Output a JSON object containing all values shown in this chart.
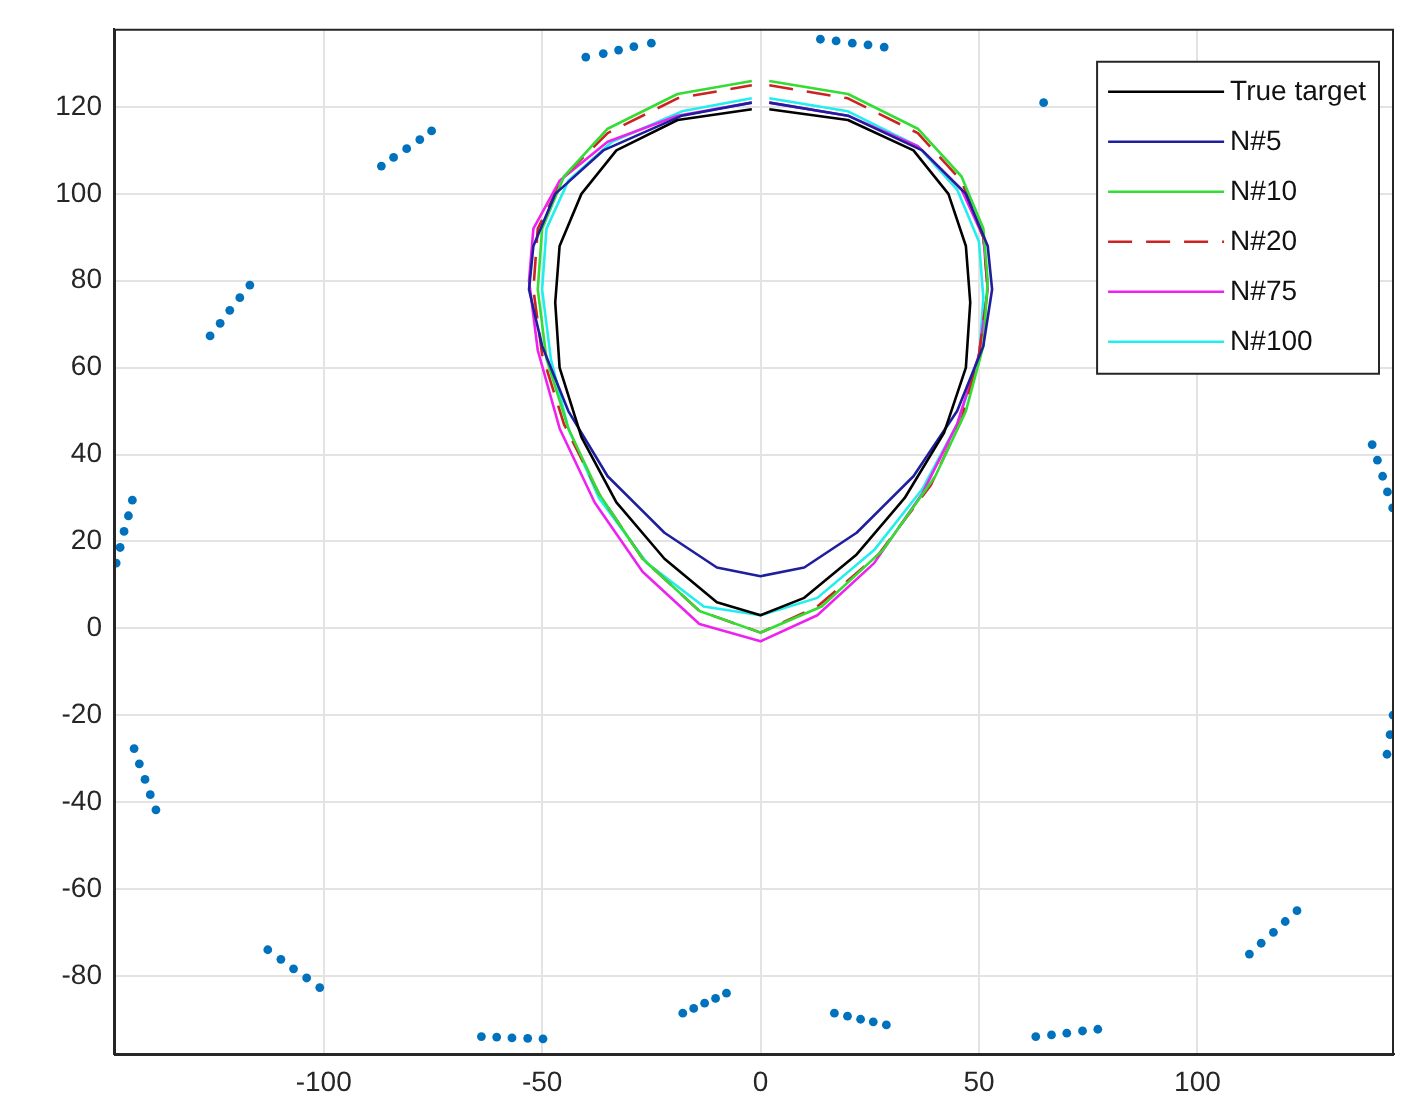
{
  "chart_data": {
    "type": "line",
    "xlim": [
      -148,
      145
    ],
    "ylim": [
      -98,
      138
    ],
    "xticks": [
      -100,
      -50,
      0,
      50,
      100
    ],
    "yticks": [
      -80,
      -60,
      -40,
      -20,
      0,
      20,
      40,
      60,
      80,
      100,
      120
    ],
    "grid": true,
    "legend": "top right",
    "series": [
      {
        "type": "scatter",
        "color": "#0072bd",
        "marker": "circle",
        "x": [
          -40,
          -36,
          -32.5,
          -29,
          -25,
          13.7,
          17.3,
          21,
          24.6,
          28.3,
          64.8,
          -86.8,
          -84,
          -81,
          -78,
          -75.3,
          -126,
          -123.7,
          -121.5,
          -119.2,
          -116.9,
          -147.5,
          -146.6,
          -145.7,
          -144.7,
          -143.8,
          -143.4,
          -142.2,
          -140.9,
          -139.7,
          -138.4,
          -112.8,
          -109.8,
          -106.9,
          -103.9,
          -100.9,
          -63.9,
          -60.4,
          -56.9,
          -53.3,
          -49.8,
          -17.8,
          -15.3,
          -12.8,
          -10.3,
          -7.8,
          16.9,
          19.9,
          22.9,
          25.8,
          28.8,
          63,
          66.6,
          70.1,
          73.7,
          77.2,
          111.9,
          114.6,
          117.4,
          120.1,
          122.8,
          143.4,
          144.1,
          144.8,
          140,
          141.2,
          142.4,
          143.5,
          144.7
        ],
        "values": [
          131.5,
          132.3,
          133.1,
          133.9,
          134.7,
          135.6,
          135.2,
          134.7,
          134.3,
          133.8,
          121,
          106.4,
          108.4,
          110.4,
          112.5,
          114.5,
          67.3,
          70.2,
          73.2,
          76.1,
          79,
          15,
          18.6,
          22.3,
          25.9,
          29.5,
          -27.7,
          -31.2,
          -34.8,
          -38.3,
          -41.8,
          -74,
          -76.2,
          -78.4,
          -80.5,
          -82.7,
          -94,
          -94.1,
          -94.3,
          -94.4,
          -94.5,
          -88.6,
          -87.5,
          -86.3,
          -85.2,
          -84,
          -88.6,
          -89.3,
          -90,
          -90.6,
          -91.3,
          -94,
          -93.6,
          -93.2,
          -92.7,
          -92.3,
          -75,
          -72.5,
          -70,
          -67.5,
          -65,
          -29,
          -24.5,
          -20,
          42.3,
          38.7,
          35,
          31.4,
          27.7
        ]
      },
      {
        "name": "True target",
        "color": "#000000",
        "marker": "none",
        "line_style": "solid",
        "x": [
          2,
          20,
          35,
          43,
          47,
          48,
          47,
          42,
          33,
          22,
          10,
          0,
          -10,
          -22,
          -33,
          -41,
          -46,
          -47,
          -46,
          -41,
          -33,
          -19,
          -2
        ],
        "values": [
          119.5,
          117,
          110,
          100,
          88,
          75,
          60,
          45,
          30,
          17,
          7,
          3,
          6,
          16,
          29,
          44,
          60,
          75,
          88,
          100,
          110,
          117,
          119.5
        ]
      },
      {
        "name": "N#5",
        "color": "#1f1f9e",
        "marker": "none",
        "line_style": "solid",
        "x": [
          2,
          20,
          37,
          47,
          52,
          53,
          51,
          45,
          35,
          22,
          10,
          0,
          -10,
          -22,
          -35,
          -44,
          -50,
          -53,
          -52,
          -47,
          -36,
          -18,
          -2
        ],
        "values": [
          121,
          118,
          110,
          100,
          88,
          78,
          65,
          50,
          35,
          22,
          14,
          12,
          14,
          22,
          35,
          50,
          65,
          78,
          88,
          100,
          110,
          118,
          121
        ]
      },
      {
        "name": "N#10",
        "color": "#33dd33",
        "marker": "none",
        "line_style": "solid",
        "x": [
          2,
          20,
          36,
          46,
          51,
          52,
          51,
          47,
          40,
          28,
          14,
          0,
          -14,
          -27,
          -37,
          -44,
          -49,
          -51,
          -50,
          -45,
          -35,
          -19,
          -2
        ],
        "values": [
          126,
          123,
          115,
          104,
          92,
          80,
          65,
          50,
          35,
          18,
          5,
          -1,
          4,
          16,
          31,
          46,
          62,
          78,
          92,
          104,
          115,
          123,
          126
        ]
      },
      {
        "name": "N#20",
        "color": "#cc2222",
        "marker": "none",
        "line_style": "dashed",
        "x": [
          2,
          20,
          36,
          46,
          51,
          52,
          50,
          46,
          39,
          27,
          13,
          0,
          -14,
          -27,
          -37,
          -45,
          -50,
          -52,
          -51,
          -45,
          -35,
          -19,
          -2
        ],
        "values": [
          125,
          122,
          114,
          103,
          90,
          78,
          63,
          48,
          33,
          17,
          5,
          -1,
          4,
          16,
          31,
          47,
          63,
          78,
          92,
          104,
          114,
          122,
          125
        ]
      },
      {
        "name": "N#75",
        "color": "#ee22ee",
        "marker": "none",
        "line_style": "solid",
        "x": [
          2,
          20,
          36,
          46,
          51,
          52,
          50,
          45,
          37,
          26,
          13,
          0,
          -14,
          -27,
          -38,
          -46,
          -51,
          -53,
          -52,
          -46,
          -35,
          -19,
          -2
        ],
        "values": [
          121,
          118,
          111,
          101,
          90,
          78,
          63,
          47,
          31,
          15,
          3,
          -3,
          1,
          13,
          29,
          46,
          64,
          80,
          92,
          103,
          112,
          118,
          121
        ]
      },
      {
        "name": "N#100",
        "color": "#22eeee",
        "marker": "none",
        "line_style": "solid",
        "x": [
          2,
          20,
          36,
          45,
          50,
          51,
          50,
          45,
          37,
          26,
          13,
          0,
          -13,
          -26,
          -37,
          -44,
          -48,
          -50,
          -49,
          -44,
          -34,
          -18,
          -2
        ],
        "values": [
          122,
          119,
          111,
          101,
          89,
          76,
          62,
          47,
          32,
          18,
          7,
          3,
          5,
          15,
          30,
          46,
          62,
          78,
          92,
          103,
          112,
          119,
          122
        ]
      }
    ]
  }
}
